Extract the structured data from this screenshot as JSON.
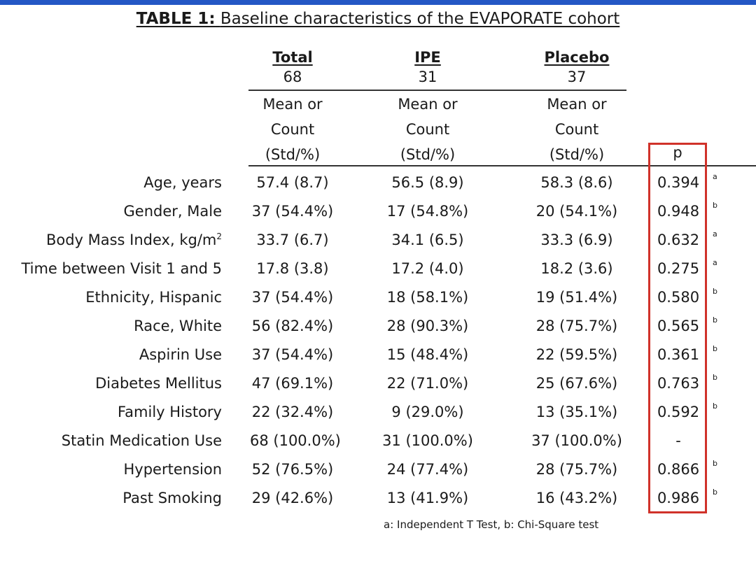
{
  "title": {
    "bold": "TABLE 1:",
    "text": "Baseline characteristics of the EVAPORATE cohort"
  },
  "columns": [
    {
      "name": "Total",
      "n": "68"
    },
    {
      "name": "IPE",
      "n": "31"
    },
    {
      "name": "Placebo",
      "n": "37"
    }
  ],
  "subheader": {
    "line1": "Mean or",
    "line2": "Count",
    "line3": "(Std/%)"
  },
  "p_header": "p",
  "rows": [
    {
      "label": "Age, years",
      "total": "57.4 (8.7)",
      "ipe": "56.5 (8.9)",
      "placebo": "58.3 (8.6)",
      "p": "0.394",
      "test": "a"
    },
    {
      "label": "Gender, Male",
      "total": "37 (54.4%)",
      "ipe": "17 (54.8%)",
      "placebo": "20 (54.1%)",
      "p": "0.948",
      "test": "b"
    },
    {
      "label": "Body Mass Index, kg/m",
      "label_sup": "2",
      "total": "33.7 (6.7)",
      "ipe": "34.1 (6.5)",
      "placebo": "33.3 (6.9)",
      "p": "0.632",
      "test": "a"
    },
    {
      "label": "Time between Visit 1 and 5",
      "total": "17.8 (3.8)",
      "ipe": "17.2 (4.0)",
      "placebo": "18.2 (3.6)",
      "p": "0.275",
      "test": "a"
    },
    {
      "label": "Ethnicity, Hispanic",
      "total": "37 (54.4%)",
      "ipe": "18 (58.1%)",
      "placebo": "19 (51.4%)",
      "p": "0.580",
      "test": "b"
    },
    {
      "label": "Race, White",
      "total": "56 (82.4%)",
      "ipe": "28 (90.3%)",
      "placebo": "28 (75.7%)",
      "p": "0.565",
      "test": "b"
    },
    {
      "label": "Aspirin Use",
      "total": "37 (54.4%)",
      "ipe": "15 (48.4%)",
      "placebo": "22 (59.5%)",
      "p": "0.361",
      "test": "b"
    },
    {
      "label": "Diabetes Mellitus",
      "total": "47 (69.1%)",
      "ipe": "22 (71.0%)",
      "placebo": "25 (67.6%)",
      "p": "0.763",
      "test": "b"
    },
    {
      "label": "Family History",
      "total": "22 (32.4%)",
      "ipe": "9 (29.0%)",
      "placebo": "13 (35.1%)",
      "p": "0.592",
      "test": "b"
    },
    {
      "label": "Statin Medication Use",
      "total": "68 (100.0%)",
      "ipe": "31 (100.0%)",
      "placebo": "37 (100.0%)",
      "p": "-",
      "test": ""
    },
    {
      "label": "Hypertension",
      "total": "52 (76.5%)",
      "ipe": "24 (77.4%)",
      "placebo": "28 (75.7%)",
      "p": "0.866",
      "test": "b"
    },
    {
      "label": "Past Smoking",
      "total": "29 (42.6%)",
      "ipe": "13 (41.9%)",
      "placebo": "16 (43.2%)",
      "p": "0.986",
      "test": "b"
    }
  ],
  "footnote": "a: Independent T Test, b: Chi-Square test",
  "colors": {
    "top_bar": "#2457c5",
    "highlight_box": "#d0322a"
  }
}
